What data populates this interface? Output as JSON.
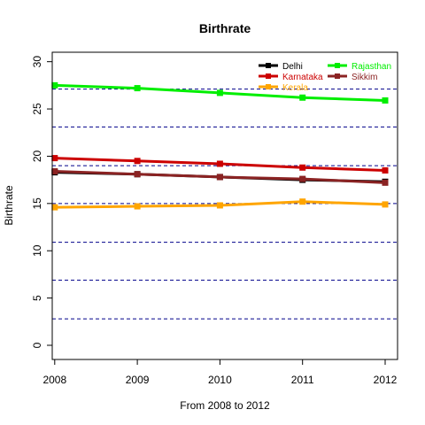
{
  "chart_data": {
    "type": "line",
    "title": "Birthrate",
    "xlabel": "From 2008 to 2012",
    "ylabel": "Birthrate",
    "x": [
      2008,
      2009,
      2010,
      2011,
      2012
    ],
    "xlim": [
      2007.97,
      2012.15
    ],
    "ylim": [
      -1.5,
      31
    ],
    "yticks": [
      0,
      5,
      10,
      15,
      20,
      25,
      30
    ],
    "hlines": [
      2.8,
      6.9,
      10.9,
      15.0,
      19.0,
      23.1,
      27.1
    ],
    "grid": false,
    "legend_position": "top-right",
    "series": [
      {
        "name": "Delhi",
        "color": "#000000",
        "values": [
          18.3,
          18.1,
          17.8,
          17.5,
          17.3
        ]
      },
      {
        "name": "Karnataka",
        "color": "#cc0000",
        "values": [
          19.8,
          19.5,
          19.2,
          18.8,
          18.5
        ]
      },
      {
        "name": "Kerala",
        "color": "#ffa500",
        "values": [
          14.6,
          14.7,
          14.8,
          15.2,
          14.9
        ]
      },
      {
        "name": "Rajasthan",
        "color": "#00ee00",
        "values": [
          27.5,
          27.2,
          26.7,
          26.2,
          25.9
        ]
      },
      {
        "name": "Sikkim",
        "color": "#8b2323",
        "values": [
          18.4,
          18.1,
          17.8,
          17.6,
          17.2
        ]
      }
    ]
  }
}
